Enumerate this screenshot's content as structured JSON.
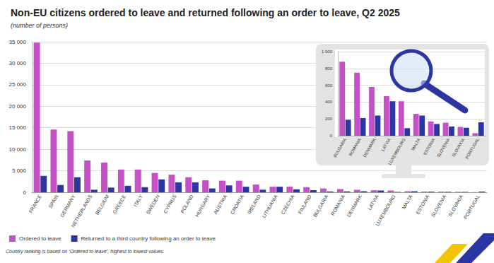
{
  "chart_data": [
    {
      "type": "bar",
      "title": "Non-EU citizens ordered to leave and returned following an order to leave, Q2 2025",
      "subtitle": "(number of persons)",
      "footnote": "Country ranking is based on ‘Ordered to leave’, highest to lowest values.",
      "categories": [
        "FRANCE",
        "SPAIN",
        "GERMANY",
        "NETHERLANDS",
        "BELGIUM",
        "GREECE",
        "ITALY",
        "SWEDEN",
        "CYPRUS",
        "POLAND",
        "HUNGARY",
        "AUSTRIA",
        "CROATIA",
        "IRELAND",
        "LITHUANIA",
        "CZECHIA",
        "FINLAND",
        "BULGARIA",
        "ROMANIA",
        "DENMARK",
        "LATVIA",
        "LUXEMBOURG",
        "MALTA",
        "ESTONIA",
        "SLOVENIA",
        "SLOVAKIA",
        "PORTUGAL"
      ],
      "series": [
        {
          "name": "Ordered to leave",
          "color": "#c651c6",
          "values": [
            34800,
            14600,
            14200,
            7400,
            6900,
            5300,
            5300,
            4500,
            4100,
            3500,
            2800,
            2700,
            2700,
            1800,
            1300,
            1300,
            1200,
            880,
            750,
            580,
            470,
            410,
            260,
            170,
            155,
            105,
            30
          ]
        },
        {
          "name": "Returned to a third country following an order to leave",
          "color": "#2b36a3",
          "values": [
            3800,
            1700,
            3500,
            600,
            1100,
            1500,
            1200,
            3000,
            2300,
            2300,
            900,
            1600,
            1300,
            600,
            1300,
            700,
            500,
            190,
            210,
            240,
            410,
            90,
            240,
            140,
            110,
            95,
            160
          ]
        }
      ],
      "ylim": [
        0,
        35000
      ],
      "yticks": [
        0,
        {
          "value": 5000,
          "label": "5 000"
        },
        {
          "value": 10000,
          "label": "10 000"
        },
        {
          "value": 15000,
          "label": "15 000"
        },
        {
          "value": 20000,
          "label": "20 000"
        },
        {
          "value": 25000,
          "label": "25 000"
        },
        {
          "value": 30000,
          "label": "30 000"
        },
        {
          "value": 35000,
          "label": "35 000"
        }
      ],
      "grid": true,
      "legend": "bottom-left"
    },
    {
      "type": "bar",
      "categories": [
        "BULGARIA",
        "ROMANIA",
        "DENMARK",
        "LATVIA",
        "LUXEMBOURG",
        "MALTA",
        "ESTONIA",
        "SLOVENIA",
        "SLOVAKIA",
        "PORTUGAL"
      ],
      "series": [
        {
          "name": "Ordered to leave",
          "color": "#c651c6",
          "values": [
            880,
            750,
            580,
            470,
            410,
            260,
            170,
            155,
            105,
            30
          ]
        },
        {
          "name": "Returned to a third country following an order to leave",
          "color": "#2b36a3",
          "values": [
            190,
            210,
            240,
            410,
            90,
            240,
            140,
            110,
            95,
            160
          ]
        }
      ],
      "ylim": [
        0,
        1000
      ],
      "yticks": [
        0,
        200,
        400,
        600,
        800,
        {
          "value": 1000,
          "label": "1 000"
        }
      ],
      "grid": true
    }
  ]
}
